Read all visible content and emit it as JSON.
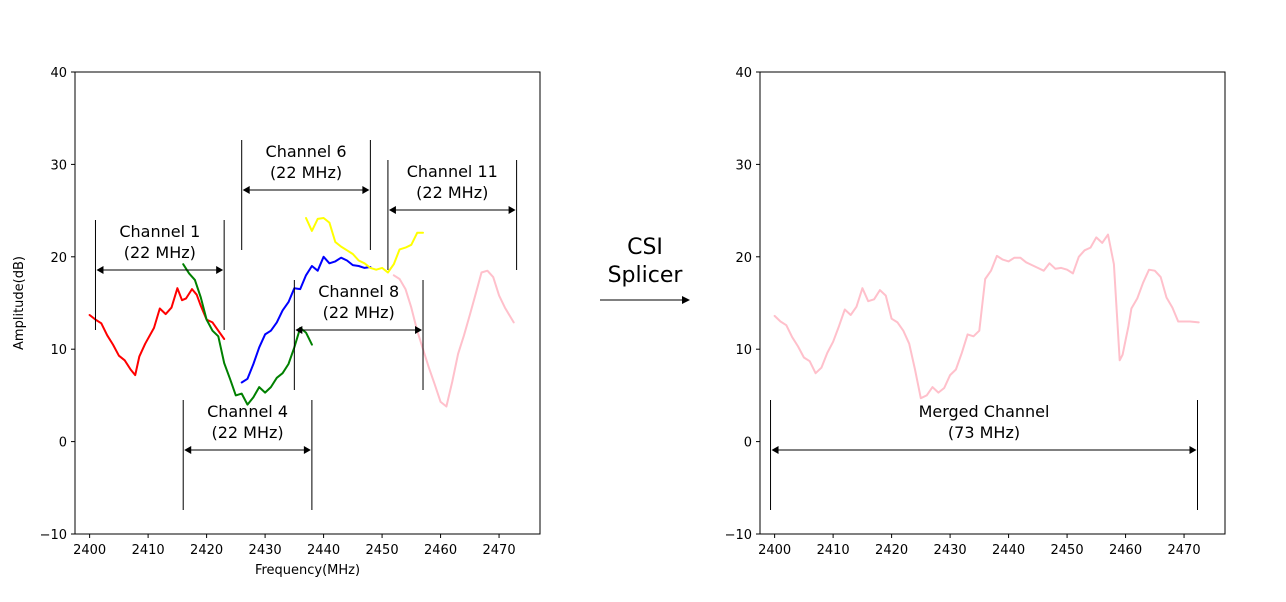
{
  "splicer_label": [
    "CSI",
    "Splicer"
  ],
  "chart_data": [
    {
      "type": "line",
      "xlabel": "Frequency(MHz)",
      "ylabel": "Amplitude(dB)",
      "xlim": [
        2397.5,
        2477
      ],
      "ylim": [
        -10,
        40
      ],
      "xticks": [
        2400,
        2410,
        2420,
        2430,
        2440,
        2450,
        2460,
        2470
      ],
      "yticks": [
        -10,
        0,
        10,
        20,
        30,
        40
      ],
      "grid": false,
      "series": [
        {
          "color": "#ff0000",
          "x": [
            2400,
            2401,
            2402,
            2403,
            2404,
            2405,
            2406,
            2407,
            2407.8,
            2408.5,
            2409.5,
            2411,
            2412,
            2413,
            2414,
            2415,
            2415.8,
            2416.5,
            2417.5,
            2418.3,
            2419,
            2420,
            2421,
            2422,
            2423
          ],
          "y": [
            13.7,
            13.2,
            12.8,
            11.5,
            10.5,
            9.3,
            8.8,
            7.8,
            7.2,
            9.2,
            10.6,
            12.3,
            14.4,
            13.8,
            14.5,
            16.6,
            15.3,
            15.5,
            16.5,
            15.9,
            14.7,
            13.2,
            12.9,
            12.0,
            11.1
          ]
        },
        {
          "color": "#008000",
          "x": [
            2416,
            2417,
            2418,
            2419,
            2420,
            2421,
            2422,
            2423,
            2424,
            2425,
            2426,
            2427,
            2428,
            2429,
            2430,
            2431,
            2432,
            2433,
            2434,
            2435,
            2436,
            2437,
            2438
          ],
          "y": [
            19.2,
            18.2,
            17.5,
            15.6,
            13.2,
            12.0,
            11.4,
            8.5,
            6.8,
            5.0,
            5.2,
            4.0,
            4.8,
            5.9,
            5.3,
            5.9,
            6.9,
            7.4,
            8.4,
            10.2,
            12.3,
            11.8,
            10.5
          ]
        },
        {
          "color": "#0000ff",
          "x": [
            2426,
            2427,
            2428,
            2429,
            2430,
            2431,
            2432,
            2433,
            2434,
            2435,
            2436,
            2437,
            2438,
            2439,
            2440,
            2441,
            2442,
            2443,
            2444,
            2445,
            2446,
            2447,
            2448
          ],
          "y": [
            6.4,
            6.8,
            8.4,
            10.2,
            11.6,
            12.0,
            12.9,
            14.2,
            15.1,
            16.6,
            16.5,
            18.0,
            19.0,
            18.5,
            20.0,
            19.3,
            19.5,
            19.9,
            19.6,
            19.1,
            19.0,
            18.8,
            18.9
          ]
        },
        {
          "color": "#ffff00",
          "x": [
            2437,
            2438,
            2439,
            2440,
            2441,
            2442,
            2443,
            2444,
            2445,
            2446,
            2447,
            2448,
            2449,
            2450,
            2451,
            2452,
            2453,
            2454,
            2455,
            2456,
            2457
          ],
          "y": [
            24.2,
            22.8,
            24.1,
            24.2,
            23.7,
            21.6,
            21.1,
            20.7,
            20.3,
            19.6,
            19.3,
            18.8,
            18.6,
            18.8,
            18.3,
            19.2,
            20.8,
            21.0,
            21.3,
            22.6,
            22.6
          ]
        },
        {
          "color": "#ffc0cb",
          "x": [
            2452,
            2453,
            2454,
            2455,
            2456,
            2457,
            2458,
            2459,
            2460,
            2461,
            2462,
            2463,
            2464,
            2465,
            2466,
            2467,
            2468,
            2469,
            2470,
            2471,
            2472.5
          ],
          "y": [
            18.0,
            17.6,
            16.5,
            14.5,
            12.0,
            10.0,
            8.0,
            6.2,
            4.3,
            3.8,
            6.5,
            9.5,
            11.5,
            13.7,
            16.0,
            18.3,
            18.5,
            17.8,
            15.8,
            14.5,
            12.9
          ]
        }
      ],
      "annotations": [
        {
          "label": "Channel 1",
          "bandwidth": "(22 MHz)",
          "x_start": 2401,
          "x_end": 2423
        },
        {
          "label": "Channel 4",
          "bandwidth": "(22 MHz)",
          "x_start": 2416,
          "x_end": 2438
        },
        {
          "label": "Channel 6",
          "bandwidth": "(22 MHz)",
          "x_start": 2426,
          "x_end": 2448
        },
        {
          "label": "Channel 8",
          "bandwidth": "(22 MHz)",
          "x_start": 2435,
          "x_end": 2457
        },
        {
          "label": "Channel 11",
          "bandwidth": "(22 MHz)",
          "x_start": 2451,
          "x_end": 2473
        }
      ]
    },
    {
      "type": "line",
      "xlim": [
        2397.5,
        2477
      ],
      "ylim": [
        -10,
        40
      ],
      "xticks": [
        2400,
        2410,
        2420,
        2430,
        2440,
        2450,
        2460,
        2470
      ],
      "yticks": [
        -10,
        0,
        10,
        20,
        30,
        40
      ],
      "grid": false,
      "series": [
        {
          "color": "#ffc0cb",
          "x": [
            2400,
            2401,
            2402,
            2403,
            2404,
            2405,
            2406,
            2407,
            2408,
            2409,
            2410,
            2411,
            2412,
            2413,
            2414,
            2415,
            2416,
            2417,
            2418,
            2419,
            2420,
            2421,
            2422,
            2423,
            2424,
            2425,
            2426,
            2427,
            2428,
            2429,
            2430,
            2431,
            2432,
            2433,
            2434,
            2435,
            2436,
            2437,
            2438,
            2439,
            2440,
            2441,
            2442,
            2443,
            2444,
            2445,
            2446,
            2447,
            2448,
            2449,
            2450,
            2451,
            2452,
            2453,
            2454,
            2455,
            2456,
            2457,
            2458,
            2459,
            2459.5,
            2460,
            2460.5,
            2461,
            2462,
            2463,
            2464,
            2465,
            2466,
            2467,
            2468,
            2469,
            2470,
            2471,
            2472.5
          ],
          "y": [
            13.6,
            13.0,
            12.6,
            11.3,
            10.3,
            9.1,
            8.7,
            7.4,
            8.0,
            9.6,
            10.8,
            12.5,
            14.3,
            13.7,
            14.6,
            16.6,
            15.2,
            15.4,
            16.4,
            15.8,
            13.3,
            12.9,
            12.0,
            10.6,
            7.8,
            4.7,
            5.0,
            5.9,
            5.3,
            5.8,
            7.2,
            7.8,
            9.6,
            11.6,
            11.4,
            12.0,
            17.6,
            18.5,
            20.1,
            19.7,
            19.5,
            19.9,
            19.9,
            19.4,
            19.1,
            18.8,
            18.5,
            19.3,
            18.7,
            18.8,
            18.6,
            18.2,
            20.0,
            20.7,
            21.0,
            22.1,
            21.5,
            22.4,
            19.2,
            8.8,
            9.4,
            11.0,
            12.5,
            14.4,
            15.5,
            17.2,
            18.6,
            18.5,
            17.8,
            15.6,
            14.5,
            13.0,
            13.0,
            13.0,
            12.9
          ]
        }
      ],
      "annotations": [
        {
          "label": "Merged Channel",
          "bandwidth": "(73 MHz)",
          "x_start": 2399.3,
          "x_end": 2472.3
        }
      ]
    }
  ]
}
